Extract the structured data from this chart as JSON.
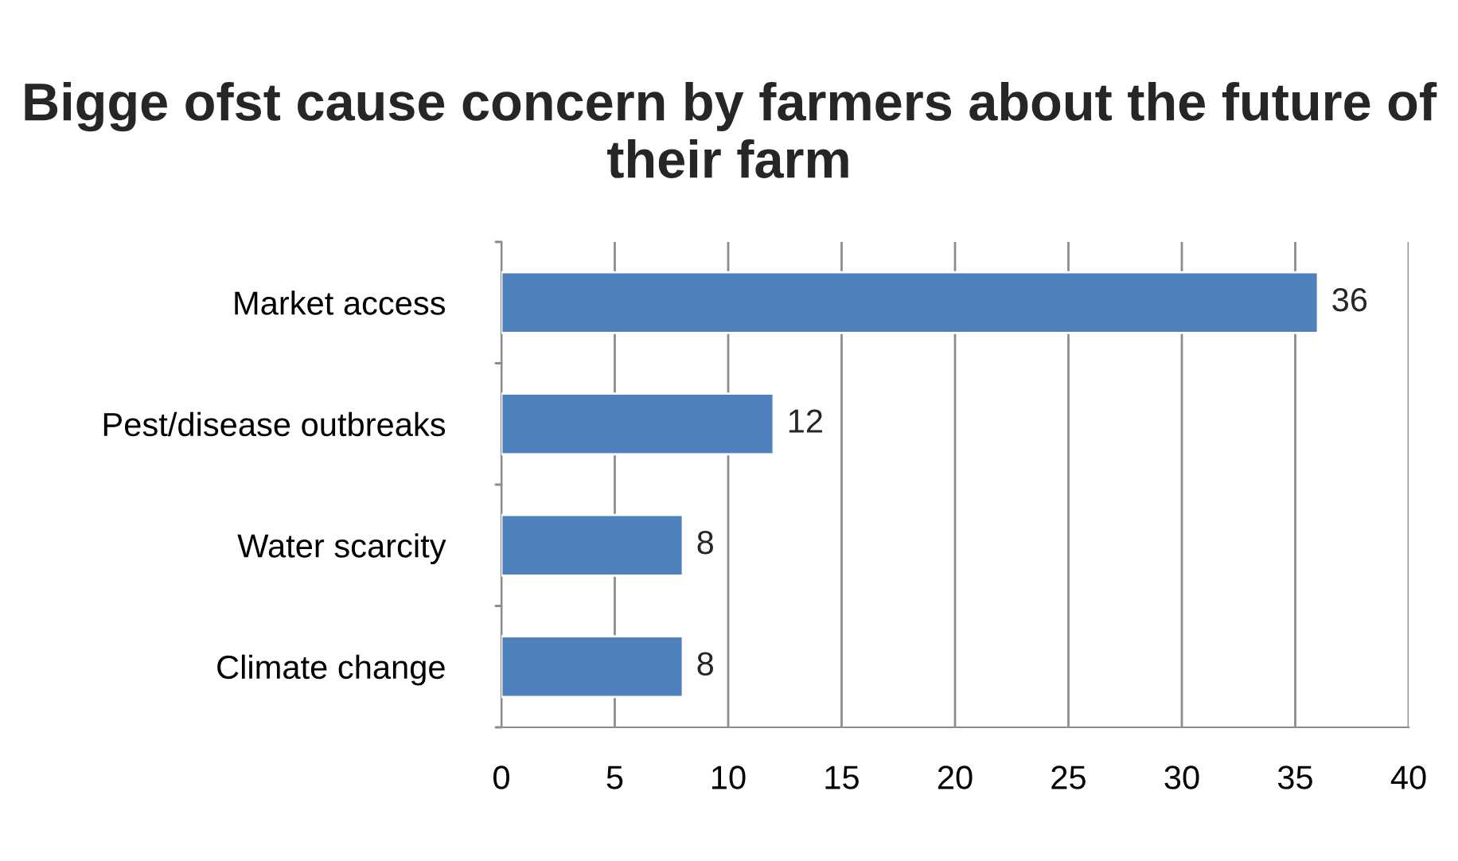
{
  "chart_data": {
    "type": "bar",
    "orientation": "horizontal",
    "title": "Bigge ofst cause concern by farmers about the future of their farm",
    "categories": [
      "Market access",
      "Pest/disease outbreaks",
      "Water scarcity",
      "Climate change"
    ],
    "values": [
      36,
      12,
      8,
      8
    ],
    "color": "#4f81bd",
    "xlim": [
      0,
      40
    ],
    "xticks": [
      0,
      5,
      10,
      15,
      20,
      25,
      30,
      35,
      40
    ],
    "grid": "x",
    "data_labels": true,
    "legend": false
  }
}
